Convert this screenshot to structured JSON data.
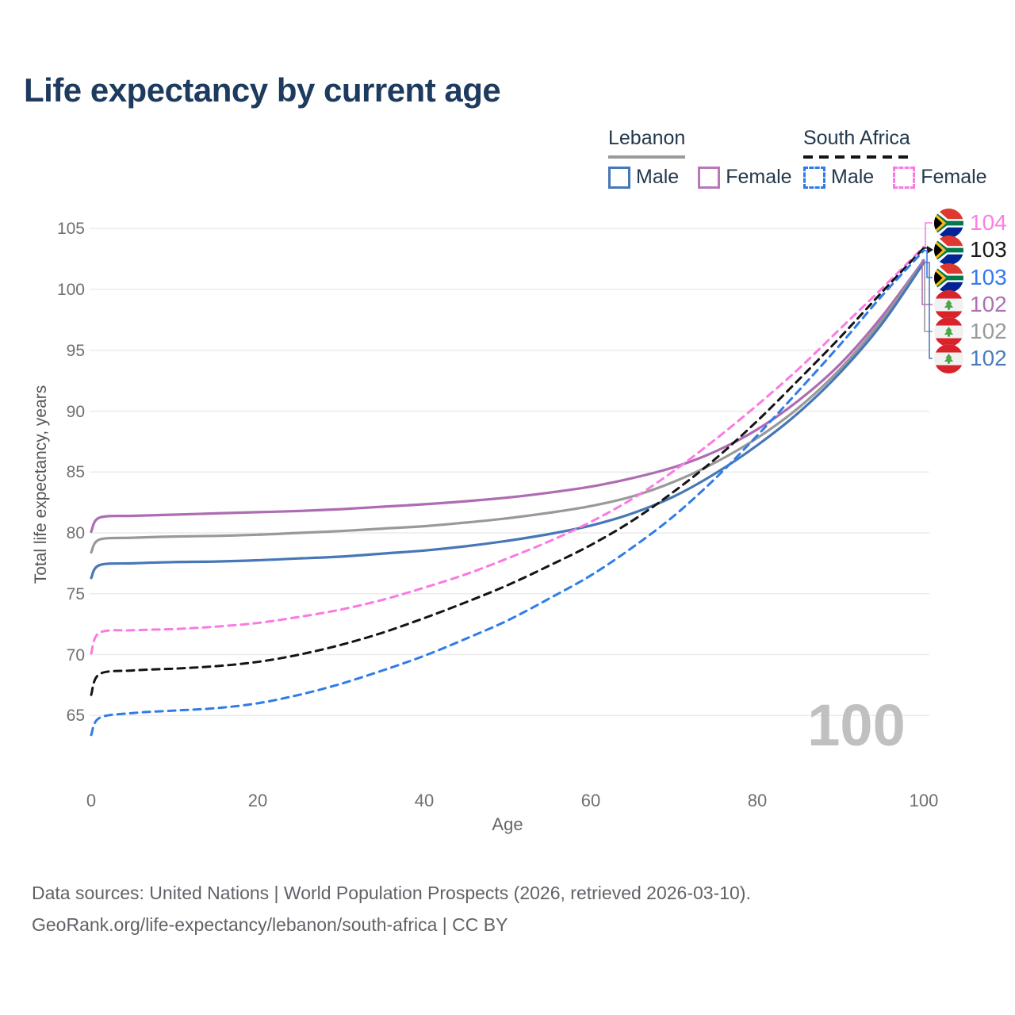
{
  "title": "Life expectancy by current age",
  "legend": {
    "groups": [
      {
        "country": "Lebanon",
        "underline_style": "solid",
        "underline_color": "#9a9a9a",
        "items": [
          {
            "label": "Male",
            "color": "#4677b6",
            "dashed": false
          },
          {
            "label": "Female",
            "color": "#b878b8",
            "dashed": false
          }
        ]
      },
      {
        "country": "South Africa",
        "underline_style": "dashed",
        "underline_color": "#141414",
        "items": [
          {
            "label": "Male",
            "color": "#2f7ce8",
            "dashed": true
          },
          {
            "label": "Female",
            "color": "#fb7ae1",
            "dashed": true
          }
        ]
      }
    ]
  },
  "axes": {
    "y": {
      "title": "Total life expectancy, years",
      "ticks": [
        65,
        70,
        75,
        80,
        85,
        90,
        95,
        100,
        105
      ]
    },
    "x": {
      "title": "Age",
      "ticks": [
        0,
        20,
        40,
        60,
        80,
        100
      ]
    }
  },
  "chart_data": {
    "type": "line",
    "title": "Life expectancy by current age",
    "xlabel": "Age",
    "ylabel": "Total life expectancy, years",
    "xlim": [
      0,
      100
    ],
    "ylim": [
      63,
      105.5
    ],
    "grid": "horizontal",
    "x": [
      0,
      1,
      5,
      10,
      15,
      20,
      25,
      30,
      35,
      40,
      45,
      50,
      55,
      60,
      65,
      70,
      75,
      80,
      85,
      90,
      95,
      100
    ],
    "series": [
      {
        "id": "leb-f",
        "name": "Lebanon Female",
        "country": "Lebanon",
        "sex": "Female",
        "color": "#ae6cb2",
        "dashed": false,
        "values": [
          80.1,
          81.25,
          81.4,
          81.5,
          81.6,
          81.7,
          81.8,
          81.95,
          82.15,
          82.35,
          82.6,
          82.9,
          83.3,
          83.8,
          84.5,
          85.4,
          86.7,
          88.5,
          90.9,
          93.9,
          97.8,
          102.4
        ]
      },
      {
        "id": "leb-all",
        "name": "Lebanon Both sexes",
        "country": "Lebanon",
        "sex": "All",
        "color": "#999999",
        "dashed": false,
        "values": [
          78.4,
          79.45,
          79.6,
          79.7,
          79.75,
          79.85,
          80.0,
          80.15,
          80.35,
          80.55,
          80.85,
          81.2,
          81.65,
          82.2,
          83.0,
          84.2,
          85.8,
          87.8,
          90.3,
          93.5,
          97.5,
          102.3
        ]
      },
      {
        "id": "leb-m",
        "name": "Lebanon Male",
        "country": "Lebanon",
        "sex": "Male",
        "color": "#4677b6",
        "dashed": false,
        "values": [
          76.3,
          77.35,
          77.5,
          77.6,
          77.65,
          77.75,
          77.9,
          78.05,
          78.3,
          78.55,
          78.9,
          79.35,
          79.9,
          80.6,
          81.6,
          83.0,
          84.9,
          87.2,
          89.9,
          93.2,
          97.2,
          102.2
        ]
      },
      {
        "id": "sa-f",
        "name": "South Africa Female",
        "country": "South Africa",
        "sex": "Female",
        "color": "#fb7ae1",
        "dashed": true,
        "values": [
          70.1,
          71.8,
          72.0,
          72.1,
          72.3,
          72.6,
          73.1,
          73.7,
          74.5,
          75.5,
          76.6,
          77.9,
          79.3,
          80.9,
          82.8,
          85.1,
          87.7,
          90.5,
          93.5,
          96.8,
          100.1,
          103.5
        ]
      },
      {
        "id": "sa-all",
        "name": "South Africa Both sexes",
        "country": "South Africa",
        "sex": "All",
        "color": "#141414",
        "dashed": true,
        "values": [
          66.7,
          68.4,
          68.7,
          68.85,
          69.05,
          69.4,
          70.0,
          70.8,
          71.8,
          73.0,
          74.3,
          75.7,
          77.3,
          79.0,
          81.0,
          83.4,
          86.1,
          89.2,
          92.6,
          96.1,
          99.8,
          103.4
        ]
      },
      {
        "id": "sa-m",
        "name": "South Africa Male",
        "country": "South Africa",
        "sex": "Male",
        "color": "#2f7ce8",
        "dashed": true,
        "values": [
          63.4,
          64.8,
          65.2,
          65.4,
          65.6,
          66.0,
          66.7,
          67.6,
          68.7,
          69.9,
          71.3,
          72.8,
          74.6,
          76.5,
          78.8,
          81.4,
          84.5,
          88.0,
          91.7,
          95.5,
          99.5,
          103.2
        ]
      }
    ]
  },
  "end_labels": [
    {
      "series": "sa-f",
      "value": "104",
      "flag": "za",
      "color": "#ff7ce5"
    },
    {
      "series": "sa-all",
      "value": "103",
      "flag": "za",
      "color": "#1a1a1a"
    },
    {
      "series": "sa-m",
      "value": "103",
      "flag": "za",
      "color": "#3579ef"
    },
    {
      "series": "leb-f",
      "value": "102",
      "flag": "lb",
      "color": "#b06fb3"
    },
    {
      "series": "leb-all",
      "value": "102",
      "flag": "lb",
      "color": "#9a9a9a"
    },
    {
      "series": "leb-m",
      "value": "102",
      "flag": "lb",
      "color": "#4a7dbf"
    }
  ],
  "age_indicator": "100",
  "footer": {
    "line1": "Data sources: United Nations | World Population Prospects (2026, retrieved 2026-03-10).",
    "line2": "GeoRank.org/life-expectancy/lebanon/south-africa | CC BY"
  }
}
